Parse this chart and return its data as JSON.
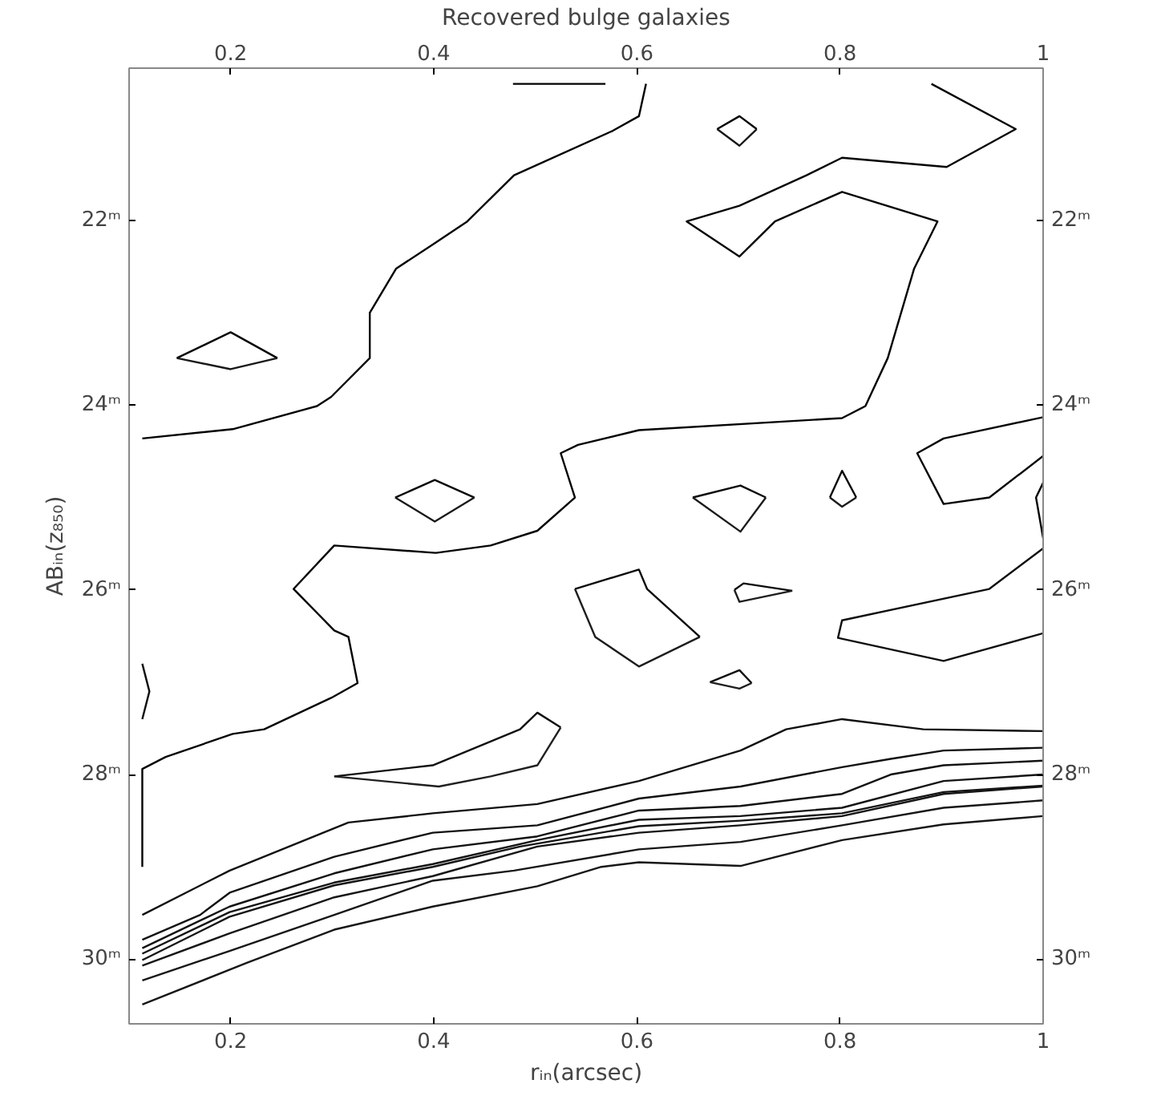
{
  "chart_data": {
    "type": "line",
    "xlabel": "rᵢₙ(arcsec)",
    "ylabel": "ABᵢₙ(z₈₅₀)",
    "x2label": "Recovered bulge galaxies",
    "xlim": [
      0.1,
      1.0
    ],
    "xticks": [
      0.2,
      0.4,
      0.6,
      0.8,
      1
    ],
    "x2lim": [
      0.1,
      1.0
    ],
    "x2ticks": [
      0.2,
      0.4,
      0.6,
      0.8,
      1
    ],
    "ylim": [
      30.7,
      20.35
    ],
    "yticks": [
      {
        "value": 22,
        "label": "22ᵐ"
      },
      {
        "value": 24,
        "label": "24ᵐ"
      },
      {
        "value": 26,
        "label": "26ᵐ"
      },
      {
        "value": 28,
        "label": "28ᵐ"
      },
      {
        "value": 30,
        "label": "30ᵐ"
      }
    ],
    "y2lim": [
      30.7,
      20.35
    ],
    "y2ticks": [
      {
        "value": 22,
        "label": "22ᵐ"
      },
      {
        "value": 24,
        "label": "24ᵐ"
      },
      {
        "value": 26,
        "label": "26ᵐ"
      },
      {
        "value": 28,
        "label": "28ᵐ"
      },
      {
        "value": 30,
        "label": "30ᵐ"
      }
    ],
    "line_style": "solid",
    "marker": "none",
    "series": [
      {
        "color": "#000000",
        "x": [
          0.113,
          0.202,
          0.285,
          0.299,
          0.337,
          0.337,
          0.363,
          0.399,
          0.433,
          0.479,
          0.576,
          0.602,
          0.609
        ],
        "values": [
          24.36,
          24.26,
          24.01,
          23.91,
          23.49,
          23.0,
          22.52,
          22.26,
          22.01,
          21.51,
          21.03,
          20.87,
          20.52
        ]
      },
      {
        "color": "#010101",
        "x": [
          0.478,
          0.569
        ],
        "values": [
          20.52,
          20.52
        ]
      },
      {
        "color": "#020202",
        "x": [
          0.679,
          0.701,
          0.718
        ],
        "values": [
          21.01,
          20.87,
          21.01
        ]
      },
      {
        "color": "#030303",
        "x": [
          0.89,
          0.973,
          0.905,
          0.802,
          0.767,
          0.701,
          0.649,
          0.701,
          0.736,
          0.802,
          0.896,
          0.873,
          0.847,
          0.825,
          0.802,
          0.602,
          0.542,
          0.525,
          0.539,
          0.502,
          0.456,
          0.402,
          0.302,
          0.262,
          0.302,
          0.316,
          0.325,
          0.299,
          0.233,
          0.202,
          0.136,
          0.113,
          0.113
        ],
        "values": [
          20.52,
          21.01,
          21.42,
          21.32,
          21.51,
          21.84,
          22.01,
          22.39,
          22.01,
          21.69,
          22.01,
          22.52,
          23.49,
          24.01,
          24.14,
          24.27,
          24.43,
          24.52,
          25.0,
          25.36,
          25.52,
          25.6,
          25.52,
          25.99,
          26.44,
          26.51,
          27.01,
          27.17,
          27.51,
          27.56,
          27.81,
          27.94,
          29.0
        ]
      },
      {
        "color": "#040404",
        "x": [
          0.147,
          0.2,
          0.246
        ],
        "values": [
          23.49,
          23.21,
          23.49
        ]
      },
      {
        "color": "#050505",
        "x": [
          1.0,
          0.902,
          0.876,
          0.902,
          0.947,
          1.0
        ],
        "values": [
          24.13,
          24.36,
          24.52,
          25.07,
          25.0,
          24.55
        ]
      },
      {
        "color": "#060606",
        "x": [
          1.0,
          0.993,
          1.0
        ],
        "values": [
          24.84,
          25.0,
          25.44
        ]
      },
      {
        "color": "#070707",
        "x": [
          0.362,
          0.401,
          0.44
        ],
        "values": [
          25.0,
          24.81,
          25.0
        ]
      },
      {
        "color": "#080808",
        "x": [
          0.655,
          0.702,
          0.727
        ],
        "values": [
          25.0,
          24.87,
          25.0
        ]
      },
      {
        "color": "#090909",
        "x": [
          0.79,
          0.802,
          0.816
        ],
        "values": [
          25.0,
          24.71,
          25.0
        ]
      },
      {
        "color": "#0a0a0a",
        "x": [
          0.539,
          0.602,
          0.61,
          0.662
        ],
        "values": [
          25.99,
          25.78,
          25.99,
          26.51
        ]
      },
      {
        "color": "#0b0b0b",
        "x": [
          0.696,
          0.705,
          0.753
        ],
        "values": [
          26.0,
          25.93,
          26.01
        ]
      },
      {
        "color": "#0c0c0c",
        "x": [
          0.672,
          0.701,
          0.713
        ],
        "values": [
          27.0,
          26.87,
          27.01
        ]
      },
      {
        "color": "#0d0d0d",
        "x": [
          1.0,
          0.947,
          0.802,
          0.798,
          0.902,
          1.0
        ],
        "values": [
          25.55,
          25.99,
          26.33,
          26.52,
          26.77,
          26.47
        ]
      },
      {
        "color": "#0e0e0e",
        "x": [
          0.113,
          0.12,
          0.113
        ],
        "values": [
          26.8,
          27.1,
          27.4
        ]
      },
      {
        "color": "#0f0f0f",
        "x": [
          0.302,
          0.399,
          0.485,
          0.502,
          0.525
        ],
        "values": [
          28.02,
          27.9,
          27.51,
          27.33,
          27.49
        ]
      },
      {
        "color": "#101010",
        "x": [
          0.113,
          0.199,
          0.316,
          0.399,
          0.502,
          0.602,
          0.702,
          0.747,
          0.802,
          0.882,
          1.0
        ],
        "values": [
          29.52,
          29.04,
          28.52,
          28.42,
          28.32,
          28.07,
          27.74,
          27.51,
          27.4,
          27.51,
          27.53
        ]
      },
      {
        "color": "#111111",
        "x": [
          0.113,
          0.17,
          0.199,
          0.302,
          0.399,
          0.502,
          0.602,
          0.702,
          0.802,
          0.85,
          0.902,
          1.0
        ],
        "values": [
          29.79,
          29.52,
          29.28,
          28.89,
          28.63,
          28.55,
          28.26,
          28.13,
          27.92,
          27.83,
          27.74,
          27.71
        ]
      },
      {
        "color": "#121212",
        "x": [
          0.113,
          0.199,
          0.302,
          0.399,
          0.502,
          0.602,
          0.702,
          0.802,
          0.85,
          0.902,
          1.0
        ],
        "values": [
          29.88,
          29.43,
          29.07,
          28.81,
          28.67,
          28.39,
          28.34,
          28.21,
          28.0,
          27.9,
          27.85
        ]
      },
      {
        "color": "#131313",
        "x": [
          0.113,
          0.199,
          0.302,
          0.399,
          0.502,
          0.602,
          0.702,
          0.802,
          0.902,
          1.0
        ],
        "values": [
          29.94,
          29.49,
          29.17,
          28.97,
          28.71,
          28.49,
          28.45,
          28.36,
          28.07,
          28.0
        ]
      },
      {
        "color": "#141414",
        "x": [
          0.113,
          0.199,
          0.302,
          0.399,
          0.485,
          0.602,
          0.702,
          0.802,
          0.902,
          1.0
        ],
        "values": [
          30.01,
          29.54,
          29.2,
          29.0,
          28.78,
          28.56,
          28.5,
          28.42,
          28.19,
          28.12
        ]
      },
      {
        "color": "#151515",
        "x": [
          0.113,
          0.199,
          0.302,
          0.399,
          0.502,
          0.602,
          0.702,
          0.802,
          0.902,
          1.0
        ],
        "values": [
          30.07,
          29.72,
          29.33,
          29.1,
          28.78,
          28.63,
          28.55,
          28.45,
          28.21,
          28.13
        ]
      },
      {
        "color": "#161616",
        "x": [
          0.113,
          0.199,
          0.302,
          0.399,
          0.479,
          0.602,
          0.702,
          0.802,
          0.902,
          1.0
        ],
        "values": [
          30.23,
          29.91,
          29.52,
          29.15,
          29.04,
          28.81,
          28.73,
          28.55,
          28.36,
          28.28
        ]
      },
      {
        "color": "#171717",
        "x": [
          0.113,
          0.216,
          0.302,
          0.399,
          0.502,
          0.565,
          0.602,
          0.702,
          0.802,
          0.902,
          1.0
        ],
        "values": [
          30.49,
          30.04,
          29.68,
          29.43,
          29.21,
          29.0,
          28.95,
          28.99,
          28.71,
          28.54,
          28.45
        ]
      },
      {
        "color": "#181818",
        "x": [
          0.718,
          0.701,
          0.679
        ],
        "values": [
          21.01,
          21.19,
          21.01
        ]
      },
      {
        "color": "#191919",
        "x": [
          0.246,
          0.2,
          0.147
        ],
        "values": [
          23.49,
          23.61,
          23.49
        ]
      },
      {
        "color": "#1a1a1a",
        "x": [
          0.44,
          0.401,
          0.362
        ],
        "values": [
          25.0,
          25.26,
          25.0
        ]
      },
      {
        "color": "#1b1b1b",
        "x": [
          0.727,
          0.702,
          0.655
        ],
        "values": [
          25.0,
          25.37,
          25.0
        ]
      },
      {
        "color": "#1c1c1c",
        "x": [
          0.816,
          0.802,
          0.79
        ],
        "values": [
          25.0,
          25.1,
          25.0
        ]
      },
      {
        "color": "#1d1d1d",
        "x": [
          0.662,
          0.602,
          0.559,
          0.539
        ],
        "values": [
          26.51,
          26.83,
          26.51,
          25.99
        ]
      },
      {
        "color": "#1e1e1e",
        "x": [
          0.753,
          0.701,
          0.696
        ],
        "values": [
          26.01,
          26.13,
          26.0
        ]
      },
      {
        "color": "#1f1f1f",
        "x": [
          0.713,
          0.701,
          0.672
        ],
        "values": [
          27.01,
          27.07,
          27.0
        ]
      },
      {
        "color": "#202020",
        "x": [
          0.525,
          0.502,
          0.456,
          0.405,
          0.302
        ],
        "values": [
          27.49,
          27.9,
          28.02,
          28.13,
          28.02
        ]
      }
    ]
  }
}
